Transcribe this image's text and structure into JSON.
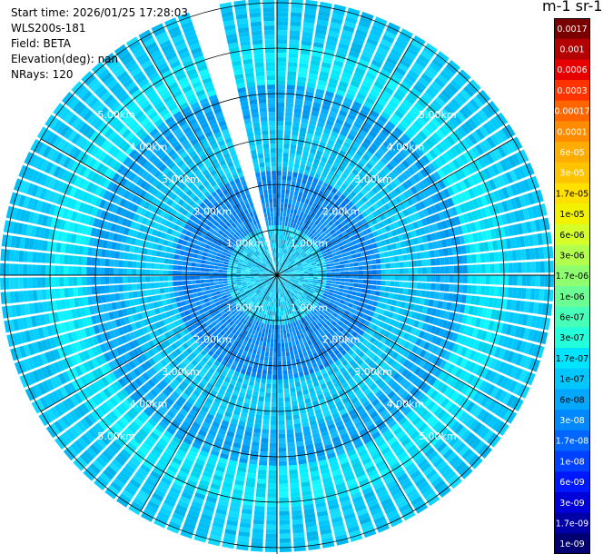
{
  "meta": {
    "start_time": "Start time: 2026/01/25 17:28:03",
    "instrument": "WLS200s-181",
    "field": "Field: BETA",
    "elevation": "Elevation(deg): nan",
    "nrays": "NRays: 120"
  },
  "colorbar": {
    "title": "m-1 sr-1",
    "labels": [
      "0.0017",
      "0.001",
      "0.0006",
      "0.0003",
      "0.00017",
      "0.0001",
      "6e-05",
      "3e-05",
      "1.7e-05",
      "1e-05",
      "6e-06",
      "3e-06",
      "1.7e-06",
      "1e-06",
      "6e-07",
      "3e-07",
      "1.7e-07",
      "1e-07",
      "6e-08",
      "3e-08",
      "1.7e-08",
      "1e-08",
      "6e-09",
      "3e-09",
      "1.7e-09",
      "1e-09"
    ],
    "colors": [
      "#7a0000",
      "#b30000",
      "#e60000",
      "#ff3300",
      "#ff6600",
      "#ff8c00",
      "#ffad00",
      "#ffc400",
      "#ffe000",
      "#f2f200",
      "#d6ff29",
      "#b2ff4d",
      "#8fff70",
      "#6bff94",
      "#47ffb8",
      "#24ffdb",
      "#00e4ff",
      "#00c8ff",
      "#00a8ff",
      "#0088ff",
      "#0066ff",
      "#0040ff",
      "#0018ff",
      "#0000d9",
      "#0000a6",
      "#000073"
    ],
    "text_colors": [
      "#ffffff",
      "#ffffff",
      "#ffffff",
      "#ffffff",
      "#ffffff",
      "#ffffff",
      "#ffffff",
      "#ffffff",
      "#000000",
      "#000000",
      "#000000",
      "#000000",
      "#000000",
      "#000000",
      "#000000",
      "#000000",
      "#000000",
      "#000000",
      "#000000",
      "#ffffff",
      "#ffffff",
      "#ffffff",
      "#ffffff",
      "#ffffff",
      "#ffffff",
      "#ffffff"
    ]
  },
  "chart_data": {
    "type": "heatmap",
    "projection": "polar-ppi",
    "n_rays": 120,
    "max_range_km": 6.0,
    "range_rings_km": [
      1.0,
      2.0,
      3.0,
      4.0,
      5.0,
      6.0
    ],
    "range_labels": [
      {
        "text": "1.00km",
        "azimuth_deg": [
          315,
          45,
          225,
          135
        ]
      },
      {
        "text": "2.00km",
        "azimuth_deg": [
          315,
          45,
          225,
          135
        ]
      },
      {
        "text": "3.00km",
        "azimuth_deg": [
          315,
          45,
          225,
          135
        ]
      },
      {
        "text": "4.00km",
        "azimuth_deg": [
          315,
          45,
          225,
          135
        ]
      },
      {
        "text": "5.00km",
        "azimuth_deg": [
          315,
          45,
          225,
          135
        ]
      }
    ],
    "spokes_deg": [
      0,
      30,
      60,
      90,
      120,
      150,
      180,
      210,
      240,
      270,
      300,
      330
    ],
    "missing_sector_deg": [
      342,
      348
    ],
    "radial_bands": [
      {
        "range_km": [
          0.0,
          1.0
        ],
        "level": "1e-07",
        "texture": "speckled"
      },
      {
        "range_km": [
          1.0,
          2.3
        ],
        "level": "3e-08"
      },
      {
        "range_km": [
          2.3,
          3.4
        ],
        "level": "1e-07"
      },
      {
        "range_km": [
          3.4,
          4.2
        ],
        "level": "6e-08"
      },
      {
        "range_km": [
          4.2,
          5.0
        ],
        "level": "1.7e-07"
      },
      {
        "range_km": [
          5.0,
          6.0
        ],
        "level": "1e-07"
      }
    ],
    "colorscale": "log",
    "value_range": [
      "1e-09",
      "0.0017"
    ]
  }
}
